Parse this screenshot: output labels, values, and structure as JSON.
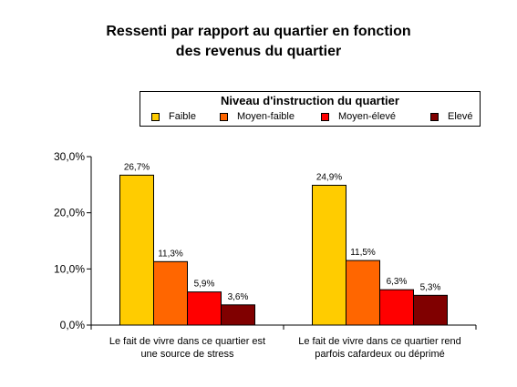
{
  "chart_data": {
    "type": "bar",
    "title_lines": [
      "Ressenti par rapport au quartier en fonction",
      "des revenus du quartier"
    ],
    "categories": [
      [
        "Le fait de vivre dans ce quartier est",
        "une source de stress"
      ],
      [
        "Le fait de vivre dans ce quartier rend",
        "parfois cafardeux ou déprimé"
      ]
    ],
    "legend_title": "Niveau d'instruction du quartier",
    "legend_position": "top-right",
    "series": [
      {
        "name": "Faible",
        "color": "#FFCC00",
        "values": [
          26.7,
          24.9
        ],
        "labels": [
          "26,7%",
          "24,9%"
        ]
      },
      {
        "name": "Moyen-faible",
        "color": "#FF6600",
        "values": [
          11.3,
          11.5
        ],
        "labels": [
          "11,3%",
          "11,5%"
        ]
      },
      {
        "name": "Moyen-élevé",
        "color": "#FF0000",
        "values": [
          5.9,
          6.3
        ],
        "labels": [
          "5,9%",
          "6,3%"
        ]
      },
      {
        "name": "Elevé",
        "color": "#800000",
        "values": [
          3.6,
          5.3
        ],
        "labels": [
          "3,6%",
          "5,3%"
        ]
      }
    ],
    "ylim": [
      0,
      30
    ],
    "yticks": [
      0,
      10,
      20,
      30
    ],
    "ytick_labels": [
      "0,0%",
      "10,0%",
      "20,0%",
      "30,0%"
    ],
    "grid": false
  }
}
